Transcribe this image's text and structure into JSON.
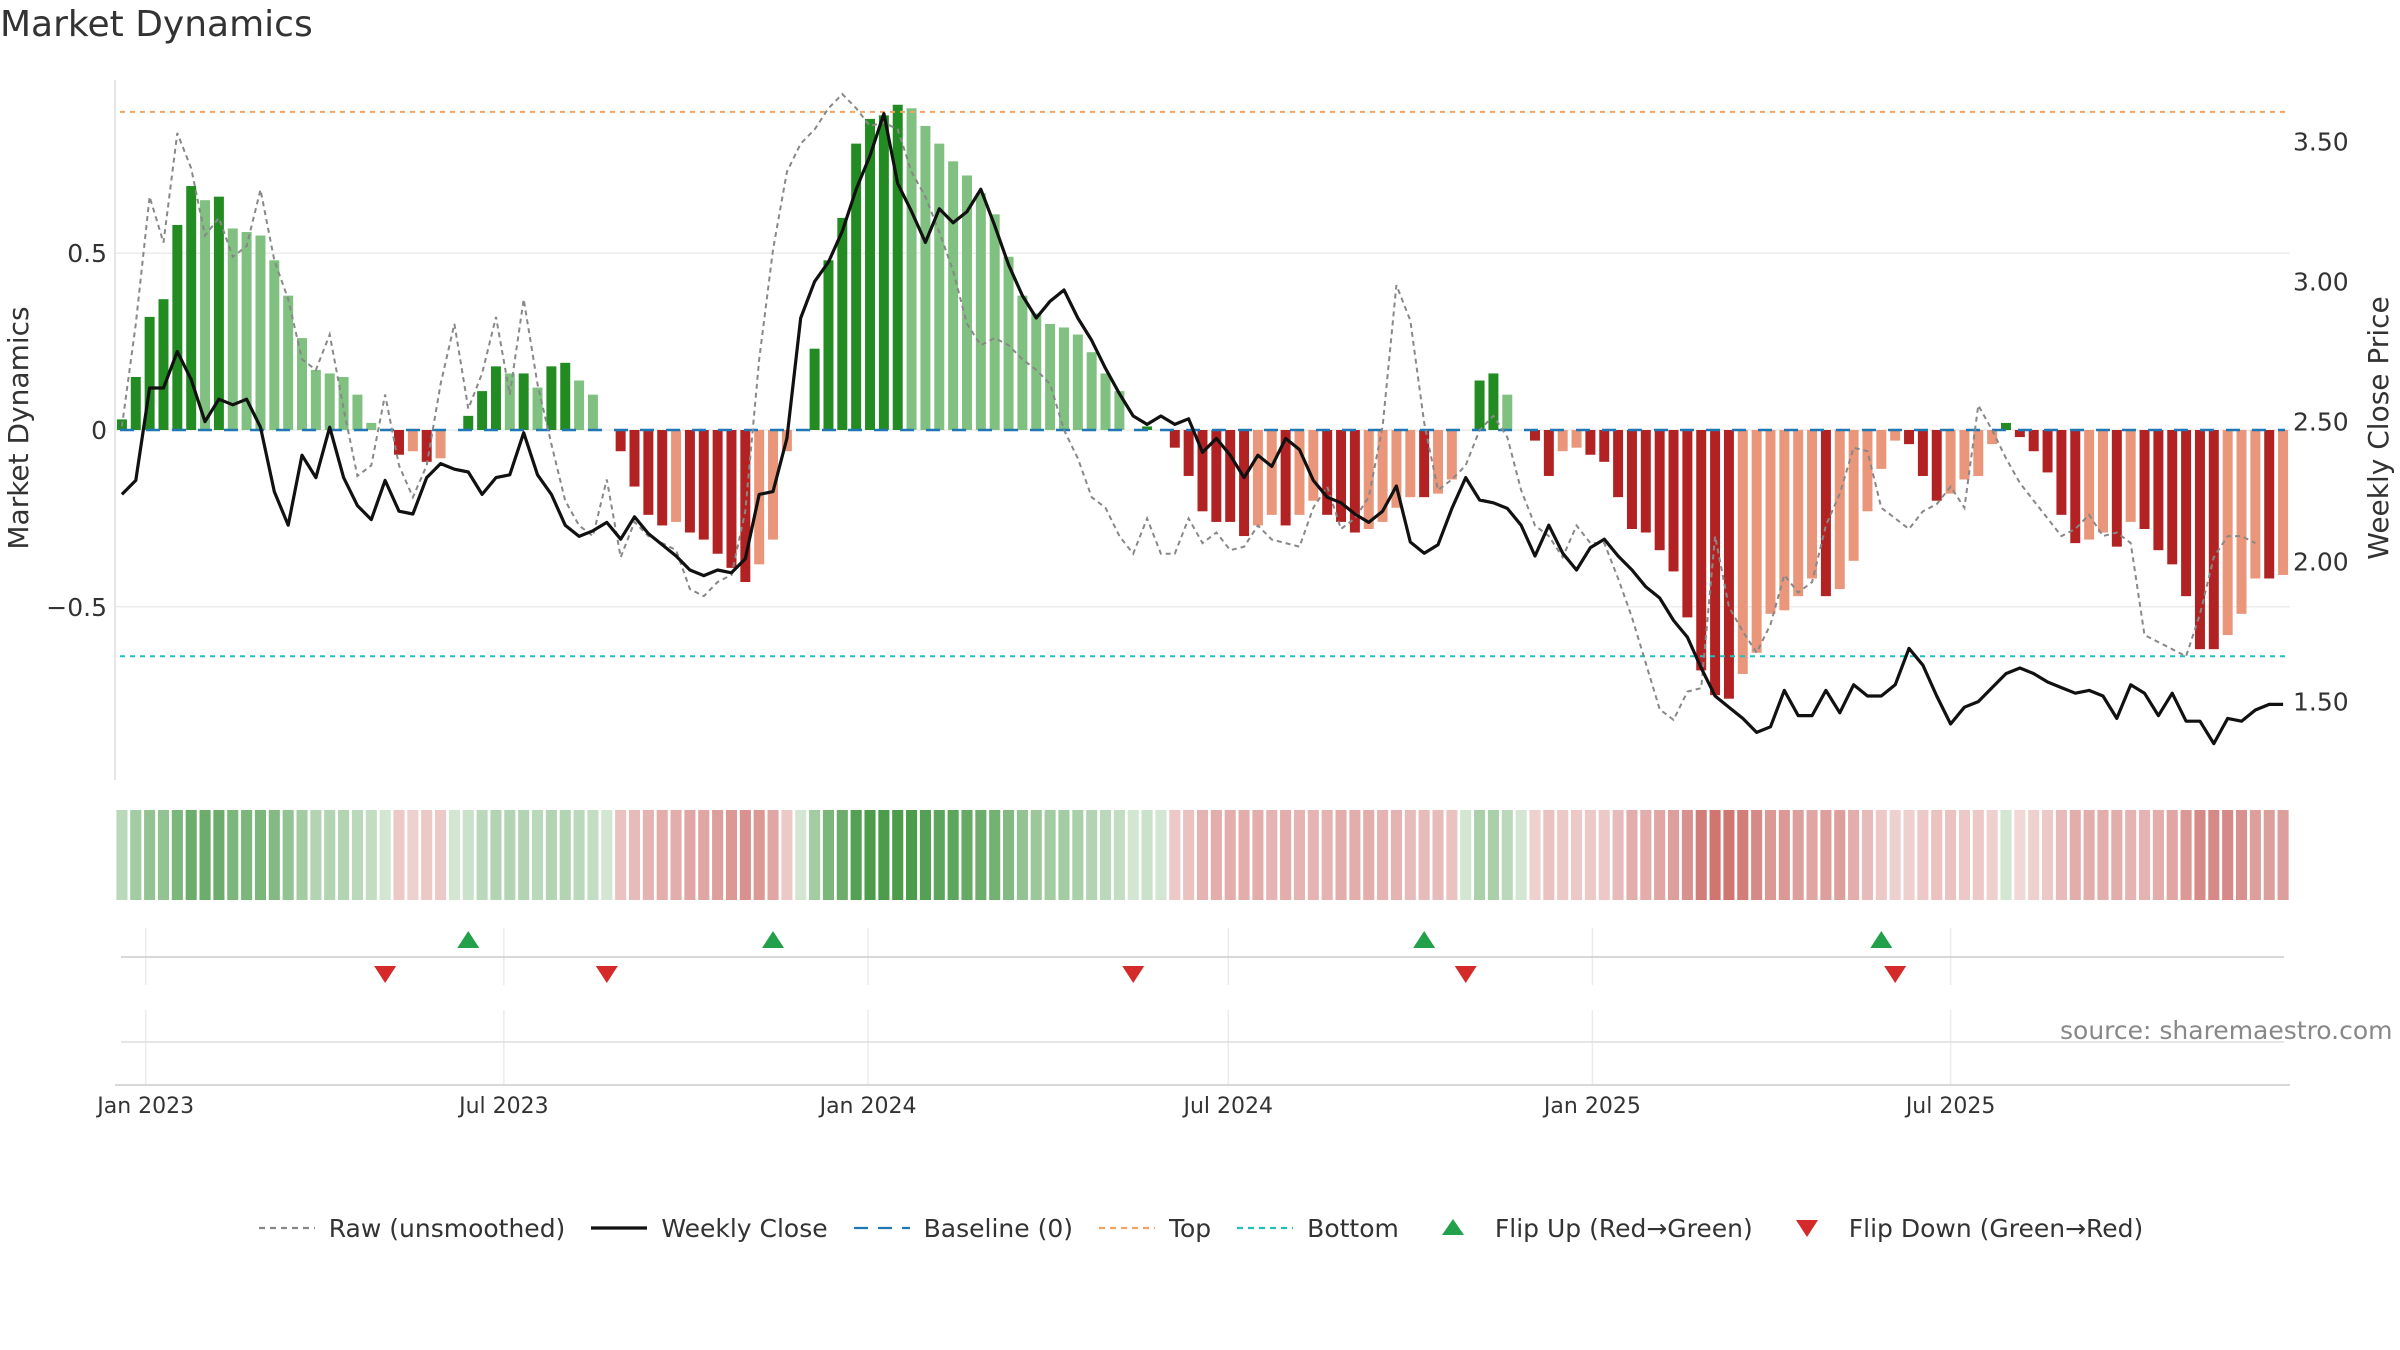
{
  "chart_data": {
    "type": "bar",
    "title": "Market Dynamics",
    "ylabel": "Market Dynamics",
    "y2label": "Weekly Close Price",
    "ylim": [
      -0.99,
      0.99
    ],
    "y2lim": [
      1.22,
      3.72
    ],
    "yticks": [
      {
        "v": 0.5,
        "label": "0.5"
      },
      {
        "v": 0,
        "label": "0"
      },
      {
        "v": -0.5,
        "label": "−0.5"
      }
    ],
    "y2ticks": [
      {
        "v": 3.5,
        "label": "3.50"
      },
      {
        "v": 3.0,
        "label": "3.00"
      },
      {
        "v": 2.5,
        "label": "2.50"
      },
      {
        "v": 2.0,
        "label": "2.00"
      },
      {
        "v": 1.5,
        "label": "1.50"
      }
    ],
    "xticks": [
      {
        "date": "2023-01-01",
        "label": "Jan 2023"
      },
      {
        "date": "2023-07-01",
        "label": "Jul 2023"
      },
      {
        "date": "2024-01-01",
        "label": "Jan 2024"
      },
      {
        "date": "2024-07-01",
        "label": "Jul 2024"
      },
      {
        "date": "2025-01-01",
        "label": "Jan 2025"
      },
      {
        "date": "2025-07-01",
        "label": "Jul 2025"
      }
    ],
    "start_date": "2022-12-20",
    "interval_days": 7,
    "top": 0.9,
    "bottom": -0.64,
    "baseline": 0,
    "grid": true,
    "legend_position": "bottom",
    "colors": {
      "strong_up": "#228b22",
      "weak_up": "#80c080",
      "strong_down": "#b22222",
      "weak_down": "#e9967a",
      "raw": "#888888",
      "close": "#111111",
      "baseline": "#1f77b4",
      "top": "#f4a460",
      "bottom": "#20c0c0",
      "flip_up": "#22a04a",
      "flip_down": "#d42a2a"
    },
    "dynamics": [
      0.03,
      0.15,
      0.32,
      0.37,
      0.58,
      0.69,
      0.65,
      0.66,
      0.57,
      0.56,
      0.55,
      0.48,
      0.38,
      0.26,
      0.17,
      0.16,
      0.15,
      0.1,
      0.02,
      0.0,
      -0.07,
      -0.06,
      -0.09,
      -0.08,
      0.0,
      0.04,
      0.11,
      0.18,
      0.16,
      0.16,
      0.12,
      0.18,
      0.19,
      0.14,
      0.1,
      0.0,
      -0.06,
      -0.16,
      -0.24,
      -0.27,
      -0.26,
      -0.29,
      -0.31,
      -0.35,
      -0.39,
      -0.43,
      -0.38,
      -0.31,
      -0.06,
      0.0,
      0.23,
      0.48,
      0.6,
      0.81,
      0.88,
      0.89,
      0.92,
      0.91,
      0.86,
      0.81,
      0.76,
      0.72,
      0.67,
      0.61,
      0.49,
      0.38,
      0.33,
      0.3,
      0.29,
      0.27,
      0.22,
      0.16,
      0.11,
      0.0,
      0.01,
      0.0,
      -0.05,
      -0.13,
      -0.23,
      -0.26,
      -0.26,
      -0.3,
      -0.27,
      -0.24,
      -0.27,
      -0.24,
      -0.2,
      -0.24,
      -0.26,
      -0.29,
      -0.28,
      -0.26,
      -0.22,
      -0.19,
      -0.19,
      -0.18,
      -0.14,
      0.0,
      0.14,
      0.16,
      0.1,
      0.0,
      -0.03,
      -0.13,
      -0.06,
      -0.05,
      -0.07,
      -0.09,
      -0.19,
      -0.28,
      -0.29,
      -0.34,
      -0.4,
      -0.53,
      -0.68,
      -0.75,
      -0.76,
      -0.69,
      -0.63,
      -0.52,
      -0.51,
      -0.47,
      -0.42,
      -0.47,
      -0.45,
      -0.37,
      -0.23,
      -0.11,
      -0.03,
      -0.04,
      -0.13,
      -0.2,
      -0.18,
      -0.14,
      -0.13,
      -0.04,
      0.02,
      -0.02,
      -0.06,
      -0.12,
      -0.24,
      -0.32,
      -0.31,
      -0.29,
      -0.33,
      -0.26,
      -0.28,
      -0.34,
      -0.38,
      -0.47,
      -0.62,
      -0.62,
      -0.58,
      -0.52,
      -0.42,
      -0.42,
      -0.41
    ],
    "raw": [
      0.01,
      0.3,
      0.66,
      0.53,
      0.84,
      0.74,
      0.55,
      0.6,
      0.49,
      0.52,
      0.68,
      0.48,
      0.37,
      0.2,
      0.17,
      0.27,
      0.06,
      -0.13,
      -0.1,
      0.1,
      -0.1,
      -0.19,
      -0.1,
      0.13,
      0.3,
      0.06,
      0.16,
      0.32,
      0.1,
      0.37,
      0.13,
      -0.04,
      -0.2,
      -0.27,
      -0.3,
      -0.14,
      -0.36,
      -0.26,
      -0.3,
      -0.32,
      -0.34,
      -0.45,
      -0.47,
      -0.43,
      -0.41,
      -0.23,
      0.2,
      0.51,
      0.73,
      0.81,
      0.85,
      0.91,
      0.95,
      0.91,
      0.86,
      0.87,
      0.85,
      0.73,
      0.66,
      0.56,
      0.45,
      0.3,
      0.24,
      0.26,
      0.24,
      0.2,
      0.17,
      0.13,
      0.0,
      -0.08,
      -0.19,
      -0.22,
      -0.3,
      -0.35,
      -0.25,
      -0.35,
      -0.35,
      -0.25,
      -0.32,
      -0.29,
      -0.34,
      -0.33,
      -0.27,
      -0.31,
      -0.32,
      -0.33,
      -0.22,
      -0.16,
      -0.28,
      -0.25,
      -0.19,
      0.01,
      0.41,
      0.31,
      0.02,
      -0.17,
      -0.14,
      -0.1,
      0.0,
      0.04,
      -0.02,
      -0.17,
      -0.27,
      -0.3,
      -0.36,
      -0.27,
      -0.32,
      -0.32,
      -0.42,
      -0.53,
      -0.66,
      -0.79,
      -0.82,
      -0.74,
      -0.73,
      -0.3,
      -0.5,
      -0.57,
      -0.63,
      -0.55,
      -0.41,
      -0.46,
      -0.43,
      -0.27,
      -0.18,
      -0.05,
      -0.06,
      -0.22,
      -0.25,
      -0.28,
      -0.23,
      -0.21,
      -0.16,
      -0.22,
      0.07,
      0.0,
      -0.08,
      -0.15,
      -0.2,
      -0.25,
      -0.3,
      -0.28,
      -0.24,
      -0.3,
      -0.29,
      -0.32,
      -0.58,
      -0.6,
      -0.62,
      -0.64,
      -0.52,
      -0.36,
      -0.3,
      -0.3,
      -0.32
    ],
    "close": [
      2.24,
      2.29,
      2.62,
      2.62,
      2.75,
      2.65,
      2.5,
      2.58,
      2.56,
      2.58,
      2.48,
      2.25,
      2.13,
      2.38,
      2.3,
      2.48,
      2.3,
      2.2,
      2.15,
      2.29,
      2.18,
      2.17,
      2.3,
      2.35,
      2.33,
      2.32,
      2.24,
      2.3,
      2.31,
      2.46,
      2.31,
      2.24,
      2.13,
      2.09,
      2.11,
      2.14,
      2.08,
      2.16,
      2.1,
      2.06,
      2.02,
      1.97,
      1.95,
      1.97,
      1.96,
      2.01,
      2.24,
      2.25,
      2.44,
      2.87,
      3.0,
      3.07,
      3.18,
      3.33,
      3.45,
      3.6,
      3.35,
      3.25,
      3.14,
      3.26,
      3.21,
      3.25,
      3.33,
      3.2,
      3.06,
      2.95,
      2.87,
      2.93,
      2.97,
      2.87,
      2.79,
      2.69,
      2.6,
      2.52,
      2.49,
      2.52,
      2.49,
      2.51,
      2.39,
      2.44,
      2.38,
      2.3,
      2.38,
      2.34,
      2.44,
      2.4,
      2.29,
      2.23,
      2.21,
      2.17,
      2.14,
      2.18,
      2.27,
      2.07,
      2.03,
      2.06,
      2.19,
      2.3,
      2.22,
      2.21,
      2.19,
      2.13,
      2.02,
      2.13,
      2.03,
      1.97,
      2.05,
      2.08,
      2.02,
      1.97,
      1.91,
      1.87,
      1.79,
      1.73,
      1.62,
      1.52,
      1.48,
      1.44,
      1.39,
      1.41,
      1.54,
      1.45,
      1.45,
      1.54,
      1.46,
      1.56,
      1.52,
      1.52,
      1.56,
      1.69,
      1.63,
      1.52,
      1.42,
      1.48,
      1.5,
      1.55,
      1.6,
      1.62,
      1.6,
      1.57,
      1.55,
      1.53,
      1.54,
      1.52,
      1.44,
      1.56,
      1.53,
      1.45,
      1.53,
      1.43,
      1.43,
      1.35,
      1.44,
      1.43,
      1.47,
      1.49,
      1.49
    ],
    "heat_levels": [
      0.2,
      0.35,
      0.45,
      0.45,
      0.6,
      0.7,
      0.7,
      0.7,
      0.6,
      0.6,
      0.6,
      0.55,
      0.45,
      0.35,
      0.25,
      0.25,
      0.25,
      0.2,
      0.15,
      0.05,
      0.15,
      0.1,
      0.15,
      0.15,
      0.05,
      0.1,
      0.2,
      0.25,
      0.25,
      0.25,
      0.2,
      0.25,
      0.25,
      0.2,
      0.15,
      0.05,
      0.2,
      0.25,
      0.3,
      0.35,
      0.35,
      0.4,
      0.4,
      0.45,
      0.5,
      0.55,
      0.5,
      0.4,
      0.15,
      0.05,
      0.35,
      0.6,
      0.7,
      0.85,
      0.9,
      0.9,
      0.9,
      0.9,
      0.85,
      0.8,
      0.8,
      0.75,
      0.7,
      0.65,
      0.55,
      0.45,
      0.4,
      0.35,
      0.35,
      0.3,
      0.25,
      0.2,
      0.15,
      0.05,
      0.1,
      0.05,
      0.15,
      0.2,
      0.3,
      0.35,
      0.35,
      0.35,
      0.35,
      0.3,
      0.35,
      0.3,
      0.3,
      0.3,
      0.35,
      0.35,
      0.35,
      0.3,
      0.3,
      0.25,
      0.25,
      0.25,
      0.2,
      0.05,
      0.3,
      0.3,
      0.2,
      0.05,
      0.1,
      0.2,
      0.15,
      0.15,
      0.15,
      0.15,
      0.25,
      0.35,
      0.35,
      0.4,
      0.45,
      0.55,
      0.7,
      0.75,
      0.75,
      0.7,
      0.6,
      0.5,
      0.5,
      0.45,
      0.4,
      0.45,
      0.45,
      0.35,
      0.25,
      0.15,
      0.1,
      0.1,
      0.15,
      0.2,
      0.2,
      0.15,
      0.15,
      0.1,
      0.05,
      0.05,
      0.1,
      0.15,
      0.25,
      0.35,
      0.35,
      0.35,
      0.35,
      0.3,
      0.3,
      0.35,
      0.4,
      0.5,
      0.6,
      0.6,
      0.6,
      0.55,
      0.45,
      0.45,
      0.45
    ],
    "flips_up": [
      "2023-06-13",
      "2023-11-14",
      "2024-10-08",
      "2025-05-27"
    ],
    "flips_down": [
      "2023-05-02",
      "2023-08-22",
      "2024-05-14",
      "2024-10-29",
      "2025-06-03"
    ],
    "legend": [
      {
        "key": "raw",
        "label": "Raw (unsmoothed)"
      },
      {
        "key": "close",
        "label": "Weekly Close"
      },
      {
        "key": "baseline",
        "label": "Baseline (0)"
      },
      {
        "key": "top",
        "label": "Top"
      },
      {
        "key": "bottom",
        "label": "Bottom"
      },
      {
        "key": "flip_up",
        "label": "Flip Up (Red→Green)"
      },
      {
        "key": "flip_down",
        "label": "Flip Down (Green→Red)"
      }
    ],
    "source": "source: sharemaestro.com"
  }
}
